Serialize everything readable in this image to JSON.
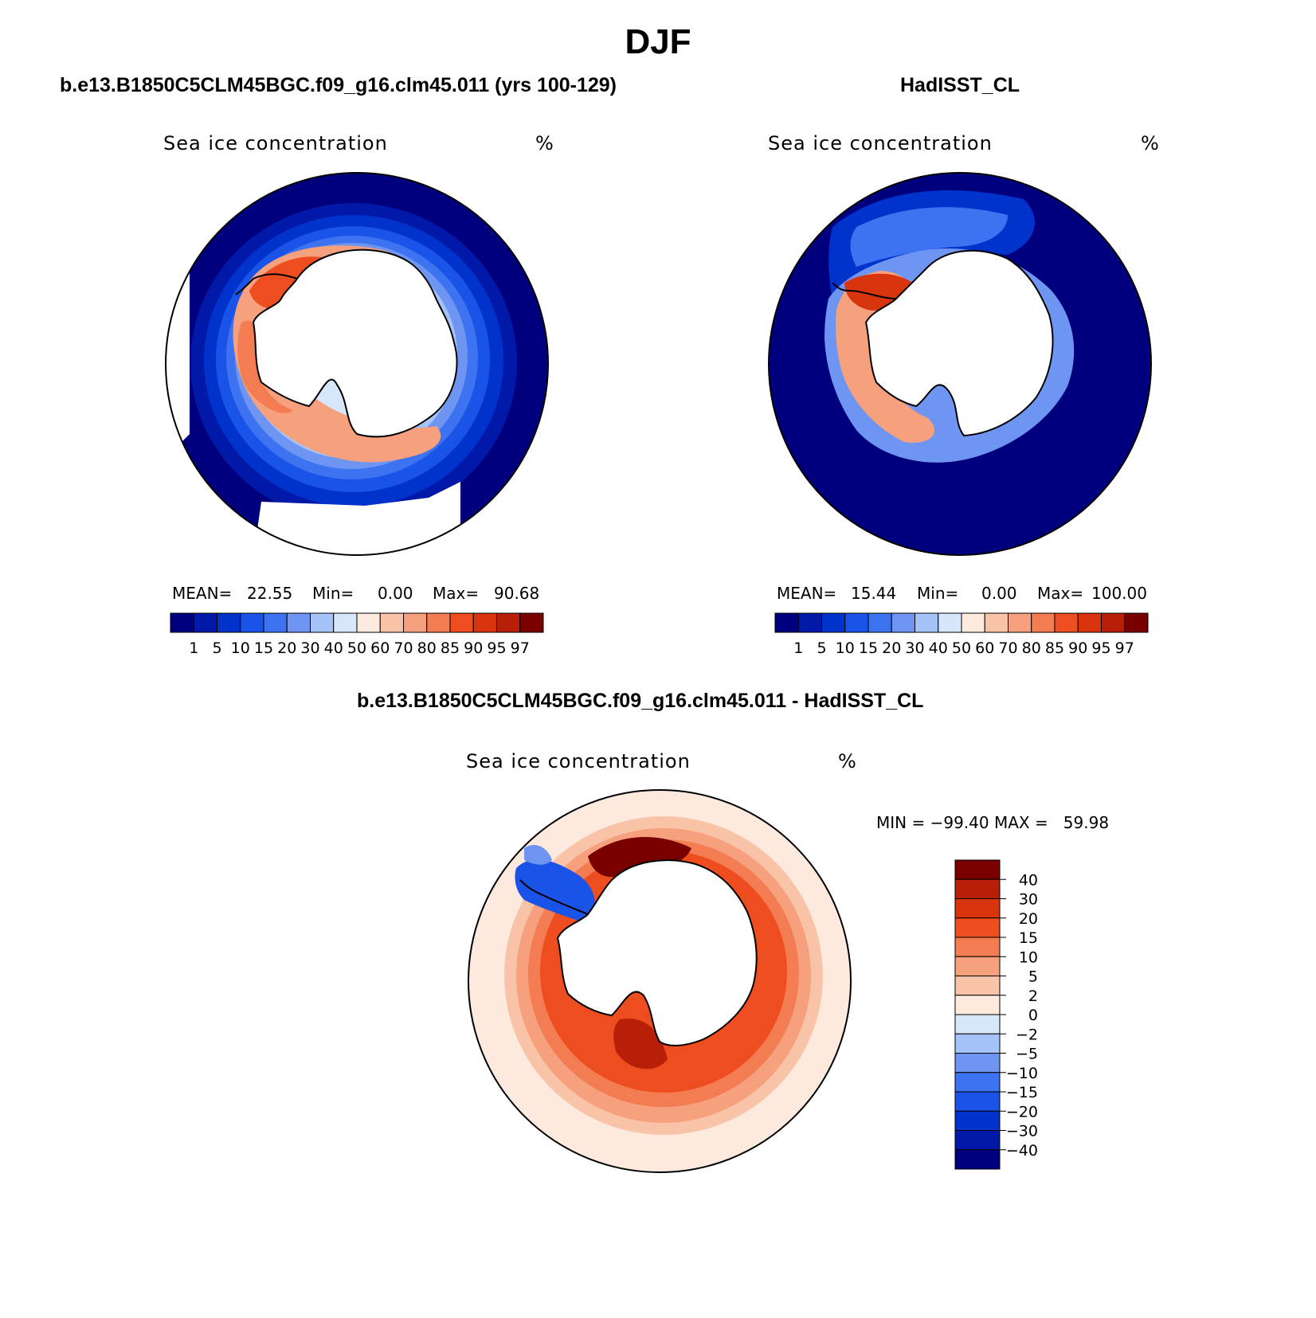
{
  "title": "DJF",
  "panels": {
    "model": {
      "case_title": "b.e13.B1850C5CLM45BGC.f09_g16.clm45.011 (yrs 100-129)",
      "variable": "Sea ice concentration",
      "units": "%",
      "stats": {
        "mean_label": "MEAN=",
        "mean": "22.55",
        "min_label": "Min=",
        "min": "0.00",
        "max_label": "Max=",
        "max": "90.68"
      }
    },
    "obs": {
      "case_title": "HadISST_CL",
      "variable": "Sea ice concentration",
      "units": "%",
      "stats": {
        "mean_label": "MEAN=",
        "mean": "15.44",
        "min_label": "Min=",
        "min": "0.00",
        "max_label": "Max=",
        "max": "100.00"
      }
    },
    "diff": {
      "case_title": "b.e13.B1850C5CLM45BGC.f09_g16.clm45.011 - HadISST_CL",
      "variable": "Sea ice concentration",
      "units": "%",
      "stats_text": "MIN = −99.40 MAX =   59.98"
    }
  },
  "chart_data": [
    {
      "type": "heatmap",
      "projection": "south-polar-stereographic",
      "title": "b.e13.B1850C5CLM45BGC.f09_g16.clm45.011 (yrs 100-129)",
      "variable": "Sea ice concentration",
      "units": "%",
      "mean": 22.55,
      "min": 0.0,
      "max": 90.68,
      "colorbar": {
        "orientation": "horizontal",
        "levels": [
          1,
          5,
          10,
          15,
          20,
          30,
          40,
          50,
          60,
          70,
          80,
          85,
          90,
          95,
          97
        ],
        "colors": [
          "#00007f",
          "#0019a8",
          "#0033cc",
          "#1a53e8",
          "#3d72f0",
          "#6f95f2",
          "#a6c3f7",
          "#d6e6fb",
          "#fde9dd",
          "#f9c3a8",
          "#f6a07e",
          "#f47c52",
          "#ee4d1f",
          "#d8350e",
          "#b81e08",
          "#7a0000"
        ]
      }
    },
    {
      "type": "heatmap",
      "projection": "south-polar-stereographic",
      "title": "HadISST_CL",
      "variable": "Sea ice concentration",
      "units": "%",
      "mean": 15.44,
      "min": 0.0,
      "max": 100.0,
      "colorbar": {
        "orientation": "horizontal",
        "levels": [
          1,
          5,
          10,
          15,
          20,
          30,
          40,
          50,
          60,
          70,
          80,
          85,
          90,
          95,
          97
        ],
        "colors": [
          "#00007f",
          "#0019a8",
          "#0033cc",
          "#1a53e8",
          "#3d72f0",
          "#6f95f2",
          "#a6c3f7",
          "#d6e6fb",
          "#fde9dd",
          "#f9c3a8",
          "#f6a07e",
          "#f47c52",
          "#ee4d1f",
          "#d8350e",
          "#b81e08",
          "#7a0000"
        ]
      }
    },
    {
      "type": "heatmap",
      "projection": "south-polar-stereographic",
      "title": "b.e13.B1850C5CLM45BGC.f09_g16.clm45.011 - HadISST_CL",
      "variable": "Sea ice concentration",
      "units": "%",
      "min": -99.4,
      "max": 59.98,
      "colorbar": {
        "orientation": "vertical",
        "levels": [
          40,
          30,
          20,
          15,
          10,
          5,
          2,
          0,
          -2,
          -5,
          -10,
          -15,
          -20,
          -30,
          -40
        ],
        "level_labels": [
          "40",
          "30",
          "20",
          "15",
          "10",
          "5",
          "2",
          "0",
          "−2",
          "−5",
          "−10",
          "−15",
          "−20",
          "−30",
          "−40"
        ],
        "colors": [
          "#7a0000",
          "#b81e08",
          "#d8350e",
          "#ee4d1f",
          "#f47c52",
          "#f6a07e",
          "#f9c3a8",
          "#fde9dd",
          "#d6e6fb",
          "#a6c3f7",
          "#6f95f2",
          "#3d72f0",
          "#1a53e8",
          "#0033cc",
          "#0019a8",
          "#00007f"
        ]
      }
    }
  ]
}
